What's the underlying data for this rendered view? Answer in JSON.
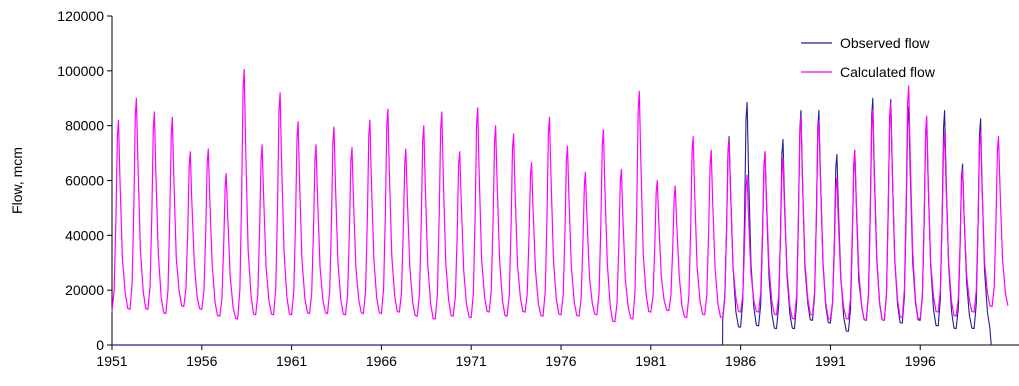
{
  "chart_data": {
    "type": "line",
    "title": "",
    "xlabel": "",
    "ylabel": "Flow, mcm",
    "x_range": [
      1951,
      2001.5
    ],
    "ylim": [
      0,
      120000
    ],
    "x_ticks": [
      "1951",
      "1956",
      "1961",
      "1966",
      "1971",
      "1976",
      "1981",
      "1986",
      "1991",
      "1996"
    ],
    "y_ticks": [
      "0",
      "20000",
      "40000",
      "60000",
      "80000",
      "100000",
      "120000"
    ],
    "grid": false,
    "legend_position": "top-right",
    "colors": {
      "observed": "#1f1f8f",
      "calculated": "#ff00ff"
    },
    "series": [
      {
        "name": "Observed flow",
        "key": "observed",
        "yearly_peaks": {
          "1985": 76000,
          "1986": 88500,
          "1987": 70500,
          "1988": 75000,
          "1989": 85500,
          "1990": 85500,
          "1991": 69500,
          "1992": 71000,
          "1993": 90000,
          "1994": 89500,
          "1995": 87000,
          "1996": 82000,
          "1997": 85500,
          "1998": 66000,
          "1999": 82500
        },
        "yearly_troughs": {
          "1985": 9000,
          "1986": 6500,
          "1987": 7000,
          "1988": 6000,
          "1989": 6000,
          "1990": 9000,
          "1991": 8000,
          "1992": 5000,
          "1993": 9000,
          "1994": 9000,
          "1995": 8000,
          "1996": 9000,
          "1997": 7000,
          "1998": 6000,
          "1999": 6000
        }
      },
      {
        "name": "Calculated flow",
        "key": "calculated",
        "yearly_peaks": {
          "1951": 82000,
          "1952": 90000,
          "1953": 85000,
          "1954": 83000,
          "1955": 70500,
          "1956": 71500,
          "1957": 62500,
          "1958": 100500,
          "1959": 73000,
          "1960": 92000,
          "1961": 81500,
          "1962": 73000,
          "1963": 79500,
          "1964": 72000,
          "1965": 82000,
          "1966": 86000,
          "1967": 71500,
          "1968": 80000,
          "1969": 85000,
          "1970": 70500,
          "1971": 86500,
          "1972": 80000,
          "1973": 77000,
          "1974": 66500,
          "1975": 83000,
          "1976": 72500,
          "1977": 63000,
          "1978": 78500,
          "1979": 64000,
          "1980": 92500,
          "1981": 60000,
          "1982": 58000,
          "1983": 76000,
          "1984": 71000,
          "1985": 75000,
          "1986": 62000,
          "1987": 70500,
          "1988": 68000,
          "1989": 83500,
          "1990": 82000,
          "1991": 61000,
          "1992": 71000,
          "1993": 86000,
          "1994": 88500,
          "1995": 94500,
          "1996": 83500,
          "1997": 77500,
          "1998": 64000,
          "1999": 78000,
          "2000": 76000
        },
        "yearly_troughs": {
          "1951": 12000,
          "1952": 13000,
          "1953": 13000,
          "1954": 11500,
          "1955": 14000,
          "1956": 13000,
          "1957": 10500,
          "1958": 9500,
          "1959": 11000,
          "1960": 11000,
          "1961": 11000,
          "1962": 11500,
          "1963": 11500,
          "1964": 11000,
          "1965": 11500,
          "1966": 11500,
          "1967": 12000,
          "1968": 10500,
          "1969": 9500,
          "1970": 10500,
          "1971": 10000,
          "1972": 12000,
          "1973": 10500,
          "1974": 12000,
          "1975": 10500,
          "1976": 11000,
          "1977": 10500,
          "1978": 11000,
          "1979": 8500,
          "1980": 9500,
          "1981": 12000,
          "1982": 12500,
          "1983": 10000,
          "1984": 11000,
          "1985": 10000,
          "1986": 12000,
          "1987": 12000,
          "1988": 11000,
          "1989": 9500,
          "1990": 11000,
          "1991": 9500,
          "1992": 9500,
          "1993": 9000,
          "1994": 9000,
          "1995": 10000,
          "1996": 9500,
          "1997": 12000,
          "1998": 10500,
          "1999": 12000,
          "2000": 14000
        }
      }
    ]
  }
}
